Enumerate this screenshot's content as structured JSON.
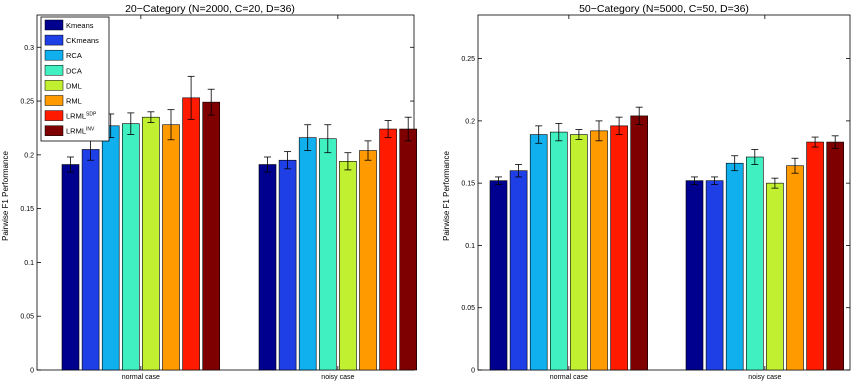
{
  "colors": {
    "Kmeans": "#00008f",
    "CKmeans": "#1f3fe6",
    "RCA": "#10b0ee",
    "DCA": "#40f0c0",
    "DML": "#c0f030",
    "RML": "#ff9a00",
    "LRML_SDP": "#ff1a00",
    "LRML_INV": "#7f0000"
  },
  "legend": {
    "entries": [
      {
        "key": "Kmeans",
        "label": "Kmeans",
        "sup": ""
      },
      {
        "key": "CKmeans",
        "label": "CKmeans",
        "sup": ""
      },
      {
        "key": "RCA",
        "label": "RCA",
        "sup": ""
      },
      {
        "key": "DCA",
        "label": "DCA",
        "sup": ""
      },
      {
        "key": "DML",
        "label": "DML",
        "sup": ""
      },
      {
        "key": "RML",
        "label": "RML",
        "sup": ""
      },
      {
        "key": "LRML_SDP",
        "label": "LRML",
        "sup": "SDP"
      },
      {
        "key": "LRML_INV",
        "label": "LRML",
        "sup": "INV"
      }
    ]
  },
  "chart_data": [
    {
      "type": "bar",
      "title": "20−Category (N=2000, C=20, D=36)",
      "xlabel": "",
      "ylabel": "Pairwise F1 Performance",
      "ylim": [
        0,
        0.33
      ],
      "yticks": [
        0,
        0.05,
        0.1,
        0.15,
        0.2,
        0.25,
        0.3
      ],
      "ytick_labels": [
        "0",
        "0.05",
        "0.1",
        "0.15",
        "0.2",
        "0.25",
        "0.3"
      ],
      "categories": [
        "normal case",
        "noisy case"
      ],
      "legend_position": "top-left",
      "grid": false,
      "series": [
        {
          "name": "Kmeans",
          "key": "Kmeans",
          "values": [
            0.191,
            0.191
          ],
          "errors": [
            0.007,
            0.007
          ]
        },
        {
          "name": "CKmeans",
          "key": "CKmeans",
          "values": [
            0.205,
            0.195
          ],
          "errors": [
            0.01,
            0.008
          ]
        },
        {
          "name": "RCA",
          "key": "RCA",
          "values": [
            0.227,
            0.216
          ],
          "errors": [
            0.011,
            0.012
          ]
        },
        {
          "name": "DCA",
          "key": "DCA",
          "values": [
            0.229,
            0.215
          ],
          "errors": [
            0.01,
            0.013
          ]
        },
        {
          "name": "DML",
          "key": "DML",
          "values": [
            0.235,
            0.194
          ],
          "errors": [
            0.005,
            0.008
          ]
        },
        {
          "name": "RML",
          "key": "RML",
          "values": [
            0.228,
            0.204
          ],
          "errors": [
            0.014,
            0.009
          ]
        },
        {
          "name": "LRML SDP",
          "key": "LRML_SDP",
          "values": [
            0.253,
            0.224
          ],
          "errors": [
            0.02,
            0.008
          ]
        },
        {
          "name": "LRML INV",
          "key": "LRML_INV",
          "values": [
            0.249,
            0.224
          ],
          "errors": [
            0.012,
            0.011
          ]
        }
      ]
    },
    {
      "type": "bar",
      "title": "50−Category (N=5000, C=50, D=36)",
      "xlabel": "",
      "ylabel": "Pairwise F1 Performance",
      "ylim": [
        0,
        0.285
      ],
      "yticks": [
        0,
        0.05,
        0.1,
        0.15,
        0.2,
        0.25
      ],
      "ytick_labels": [
        "0",
        "0.05",
        "0.1",
        "0.15",
        "0.2",
        "0.25"
      ],
      "categories": [
        "normal case",
        "noisy case"
      ],
      "grid": false,
      "series": [
        {
          "name": "Kmeans",
          "key": "Kmeans",
          "values": [
            0.152,
            0.152
          ],
          "errors": [
            0.003,
            0.003
          ]
        },
        {
          "name": "CKmeans",
          "key": "CKmeans",
          "values": [
            0.16,
            0.152
          ],
          "errors": [
            0.005,
            0.003
          ]
        },
        {
          "name": "RCA",
          "key": "RCA",
          "values": [
            0.189,
            0.166
          ],
          "errors": [
            0.007,
            0.006
          ]
        },
        {
          "name": "DCA",
          "key": "DCA",
          "values": [
            0.191,
            0.171
          ],
          "errors": [
            0.007,
            0.006
          ]
        },
        {
          "name": "DML",
          "key": "DML",
          "values": [
            0.189,
            0.15
          ],
          "errors": [
            0.004,
            0.004
          ]
        },
        {
          "name": "RML",
          "key": "RML",
          "values": [
            0.192,
            0.164
          ],
          "errors": [
            0.008,
            0.006
          ]
        },
        {
          "name": "LRML SDP",
          "key": "LRML_SDP",
          "values": [
            0.196,
            0.183
          ],
          "errors": [
            0.007,
            0.004
          ]
        },
        {
          "name": "LRML INV",
          "key": "LRML_INV",
          "values": [
            0.204,
            0.183
          ],
          "errors": [
            0.007,
            0.005
          ]
        }
      ]
    }
  ]
}
